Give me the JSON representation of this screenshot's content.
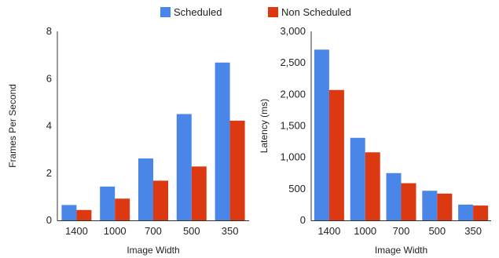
{
  "legend": [
    {
      "name": "Scheduled",
      "color": "#4a86e8"
    },
    {
      "name": "Non Scheduled",
      "color": "#dc3912"
    }
  ],
  "chart_data": [
    {
      "type": "bar",
      "categories": [
        "1400",
        "1000",
        "700",
        "500",
        "350"
      ],
      "series": [
        {
          "name": "Scheduled",
          "values": [
            0.65,
            1.43,
            2.62,
            4.5,
            6.68
          ]
        },
        {
          "name": "Non Scheduled",
          "values": [
            0.44,
            0.92,
            1.68,
            2.28,
            4.22
          ]
        }
      ],
      "xlabel": "Image Width",
      "ylabel": "Frames Per Second",
      "ylim": [
        0,
        8
      ],
      "yticks": [
        0,
        2,
        4,
        6,
        8
      ],
      "ytick_labels": [
        "0",
        "2",
        "4",
        "6",
        "8"
      ],
      "grid": false,
      "legend_position": "top"
    },
    {
      "type": "bar",
      "categories": [
        "1400",
        "1000",
        "700",
        "500",
        "350"
      ],
      "series": [
        {
          "name": "Scheduled",
          "values": [
            2710,
            1310,
            750,
            470,
            250
          ]
        },
        {
          "name": "Non Scheduled",
          "values": [
            2070,
            1080,
            590,
            425,
            235
          ]
        }
      ],
      "xlabel": "Image Width",
      "ylabel": "Latency (ms)",
      "ylim": [
        0,
        3000
      ],
      "yticks": [
        0,
        500,
        1000,
        1500,
        2000,
        2500,
        3000
      ],
      "ytick_labels": [
        "0",
        "500",
        "1,000",
        "1,500",
        "2,000",
        "2,500",
        "3,000"
      ],
      "grid": false,
      "legend_position": "top"
    }
  ]
}
